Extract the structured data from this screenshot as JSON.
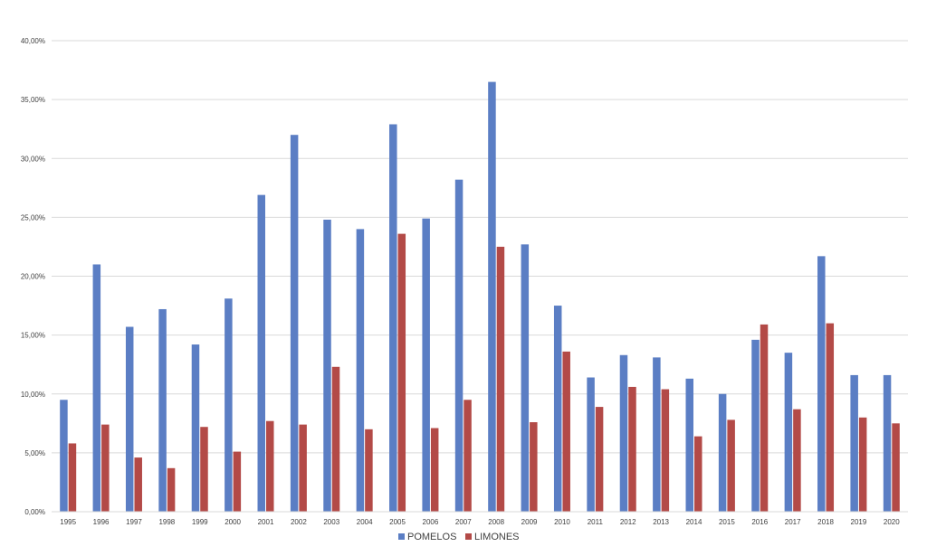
{
  "chart_data": {
    "type": "bar",
    "title": "",
    "xlabel": "",
    "ylabel": "",
    "ylim": [
      0,
      40
    ],
    "y_ticks": [
      "0,00%",
      "5,00%",
      "10,00%",
      "15,00%",
      "20,00%",
      "25,00%",
      "30,00%",
      "35,00%",
      "40,00%"
    ],
    "y_tick_values": [
      0,
      5,
      10,
      15,
      20,
      25,
      30,
      35,
      40
    ],
    "grid": true,
    "legend_position": "bottom",
    "categories": [
      "1995",
      "1996",
      "1997",
      "1998",
      "1999",
      "2000",
      "2001",
      "2002",
      "2003",
      "2004",
      "2005",
      "2006",
      "2007",
      "2008",
      "2009",
      "2010",
      "2011",
      "2012",
      "2013",
      "2014",
      "2015",
      "2016",
      "2017",
      "2018",
      "2019",
      "2020"
    ],
    "series": [
      {
        "name": "POMELOS",
        "color": "#5b7ec4",
        "values": [
          9.5,
          21.0,
          15.7,
          17.2,
          14.2,
          18.1,
          26.9,
          32.0,
          24.8,
          24.0,
          32.9,
          24.9,
          28.2,
          36.5,
          22.7,
          17.5,
          11.4,
          13.3,
          13.1,
          11.3,
          10.0,
          14.6,
          13.5,
          21.7,
          11.6,
          11.6
        ]
      },
      {
        "name": "LIMONES",
        "color": "#b34a47",
        "values": [
          5.8,
          7.4,
          4.6,
          3.7,
          7.2,
          5.1,
          7.7,
          7.4,
          12.3,
          7.0,
          23.6,
          7.1,
          9.5,
          22.5,
          7.6,
          13.6,
          8.9,
          10.6,
          10.4,
          6.4,
          7.8,
          15.9,
          8.7,
          16.0,
          8.0,
          7.5
        ]
      }
    ]
  }
}
